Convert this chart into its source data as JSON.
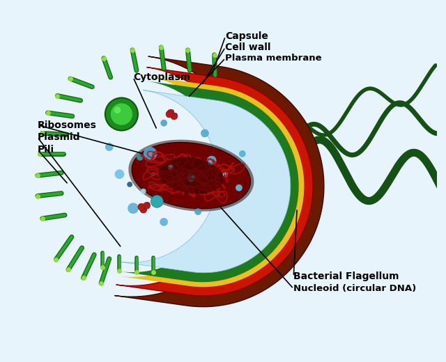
{
  "bg": "#e8f4fc",
  "colors": {
    "capsule": "#6B1A00",
    "cell_wall": "#CC1500",
    "plasma_mem_yellow": "#E8C020",
    "plasma_mem_green": "#1E7A1E",
    "cytoplasm_fill": "#b8dff0",
    "cytoplasm_stroke": "#90c8e8",
    "nucleoid_outer": "#6B0000",
    "nucleoid_dark": "#3a0000",
    "nucleoid_coils": "#9B1010",
    "plasmid_green": "#1a8a1a",
    "plasmid_light": "#2ec82e",
    "pili_color": "#1E7A1E",
    "pili_tip": "#90EE50",
    "flagellum": "#155015",
    "ribosome": "#CC2020",
    "dot_blue": "#6ab8e0",
    "dot_teal": "#20a0a0",
    "dot_dark": "#2060a0"
  },
  "annotations": [
    [
      "Capsule",
      330,
      48,
      310,
      105,
      "left"
    ],
    [
      "Cell wall",
      330,
      64,
      295,
      120,
      "left"
    ],
    [
      "Plasma membrane",
      330,
      80,
      275,
      138,
      "left"
    ],
    [
      "Cytoplasm",
      195,
      108,
      230,
      185,
      "left"
    ],
    [
      "Ribosomes",
      55,
      178,
      200,
      220,
      "left"
    ],
    [
      "Plasmid",
      55,
      196,
      170,
      360,
      "left"
    ],
    [
      "Pili",
      55,
      214,
      100,
      265,
      "left"
    ],
    [
      "Bacterial Flagellum",
      430,
      400,
      435,
      300,
      "left"
    ],
    [
      "Nucleoid (circular DNA)",
      430,
      418,
      320,
      295,
      "left"
    ]
  ]
}
